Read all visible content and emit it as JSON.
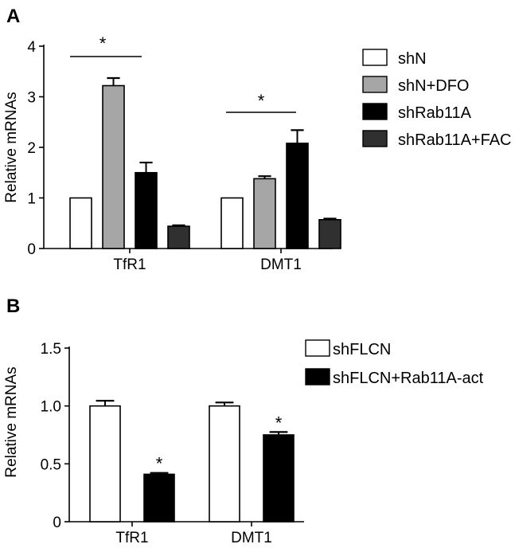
{
  "chart_data": [
    {
      "panel": "A",
      "type": "bar",
      "ylabel": "Relative mRNAs",
      "ylim": [
        0,
        4
      ],
      "yticks": [
        "0",
        "1",
        "2",
        "3",
        "4"
      ],
      "categories": [
        "TfR1",
        "DMT1"
      ],
      "series": [
        {
          "name": "shN",
          "values": [
            1.0,
            1.0
          ],
          "errors": [
            0,
            0
          ],
          "color": "#ffffff"
        },
        {
          "name": "shN+DFO",
          "values": [
            3.22,
            1.38
          ],
          "errors": [
            0.15,
            0.05
          ],
          "color": "#a6a6a6"
        },
        {
          "name": "shRab11A",
          "values": [
            1.5,
            2.08
          ],
          "errors": [
            0.2,
            0.26
          ],
          "color": "#000000"
        },
        {
          "name": "shRab11A+FAC",
          "values": [
            0.44,
            0.57
          ],
          "errors": [
            0.02,
            0.02
          ],
          "color": "#303030"
        }
      ],
      "significance": [
        {
          "category": "TfR1",
          "label": "*"
        },
        {
          "category": "DMT1",
          "label": "*"
        }
      ],
      "legend_position": "right"
    },
    {
      "panel": "B",
      "type": "bar",
      "ylabel": "Relative mRNAs",
      "ylim": [
        0,
        1.5
      ],
      "yticks": [
        "0",
        "0.5",
        "1.0",
        "1.5"
      ],
      "categories": [
        "TfR1",
        "DMT1"
      ],
      "series": [
        {
          "name": "shFLCN",
          "values": [
            1.0,
            1.0
          ],
          "errors": [
            0.045,
            0.03
          ],
          "color": "#ffffff"
        },
        {
          "name": "shFLCN+Rab11A-act",
          "values": [
            0.41,
            0.75
          ],
          "errors": [
            0.012,
            0.025
          ],
          "color": "#000000"
        }
      ],
      "significance": [
        {
          "category": "TfR1",
          "series": "shFLCN+Rab11A-act",
          "label": "*"
        },
        {
          "category": "DMT1",
          "series": "shFLCN+Rab11A-act",
          "label": "*"
        }
      ],
      "legend_position": "top-right"
    }
  ]
}
